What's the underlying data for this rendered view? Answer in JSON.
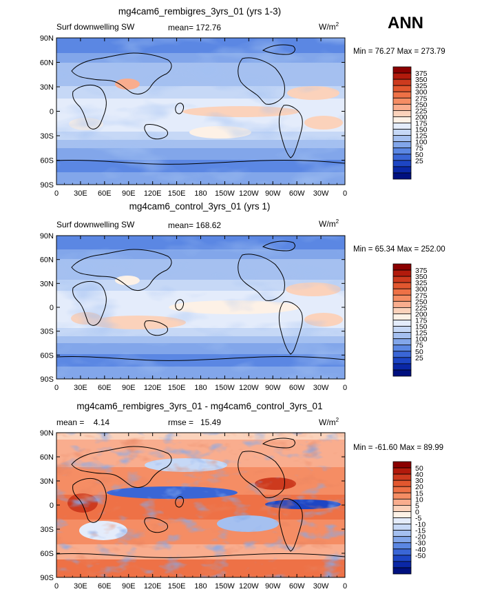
{
  "season": "ANN",
  "units": "W/m",
  "units_sup": "2",
  "lon_ticks": [
    "0",
    "30E",
    "60E",
    "90E",
    "120E",
    "150E",
    "180",
    "150W",
    "120W",
    "90W",
    "60W",
    "30W",
    "0"
  ],
  "lat_ticks": [
    "90N",
    "60N",
    "30N",
    "0",
    "30S",
    "60S",
    "90S"
  ],
  "chart_data": [
    {
      "type": "heatmap",
      "title": "mg4cam6_rembigres_3yrs_01 (yrs 1-3)",
      "variable": "Surf downwelling SW",
      "stat_label": "mean= 172.76",
      "stat2_label": "",
      "min_max": "Min =  76.27 Max = 273.79",
      "colorbar": [
        "375",
        "350",
        "325",
        "300",
        "275",
        "250",
        "225",
        "200",
        "175",
        "150",
        "125",
        "100",
        "75",
        "50",
        "25"
      ],
      "colors": [
        "#8b0000",
        "#b21a0c",
        "#cd3a1e",
        "#e2572f",
        "#ee7146",
        "#f58d64",
        "#f9ad8e",
        "#fbd2bb",
        "#fdf1e6",
        "#e4ecfb",
        "#c6d8f6",
        "#a5c0f0",
        "#82a6ea",
        "#5b87e3",
        "#3a66d6",
        "#1d45c4",
        "#0a27a6",
        "#00107f"
      ]
    },
    {
      "type": "heatmap",
      "title": "mg4cam6_control_3yrs_01 (yrs 1)",
      "variable": "Surf downwelling SW",
      "stat_label": "mean= 168.62",
      "stat2_label": "",
      "min_max": "Min =  65.34 Max = 252.00",
      "colorbar": [
        "375",
        "350",
        "325",
        "300",
        "275",
        "250",
        "225",
        "200",
        "175",
        "150",
        "125",
        "100",
        "75",
        "50",
        "25"
      ],
      "colors": [
        "#8b0000",
        "#b21a0c",
        "#cd3a1e",
        "#e2572f",
        "#ee7146",
        "#f58d64",
        "#f9ad8e",
        "#fbd2bb",
        "#fdf1e6",
        "#e4ecfb",
        "#c6d8f6",
        "#a5c0f0",
        "#82a6ea",
        "#5b87e3",
        "#3a66d6",
        "#1d45c4",
        "#0a27a6",
        "#00107f"
      ]
    },
    {
      "type": "heatmap",
      "title": "mg4cam6_rembigres_3yrs_01 - mg4cam6_control_3yrs_01",
      "variable": "",
      "stat_label": "mean =    4.14",
      "stat2_label": "rmse =   15.49",
      "min_max": "Min = -61.60 Max =  89.99",
      "colorbar": [
        "50",
        "40",
        "30",
        "20",
        "15",
        "10",
        "5",
        "0",
        "-5",
        "-10",
        "-15",
        "-20",
        "-30",
        "-40",
        "-50"
      ],
      "colors": [
        "#8b0000",
        "#b21a0c",
        "#cd3a1e",
        "#e2572f",
        "#ee7146",
        "#f58d64",
        "#f9ad8e",
        "#fbd2bb",
        "#fdf1e6",
        "#e4ecfb",
        "#c6d8f6",
        "#a5c0f0",
        "#82a6ea",
        "#5b87e3",
        "#3a66d6",
        "#1d45c4",
        "#0a27a6",
        "#00107f"
      ]
    }
  ]
}
